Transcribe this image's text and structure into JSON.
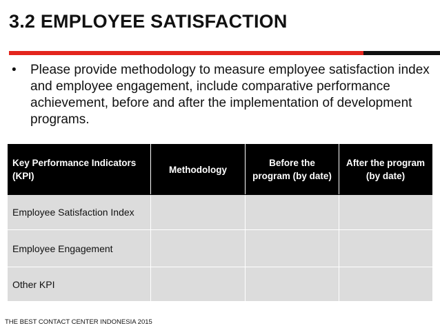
{
  "slide": {
    "title": "3.2 EMPLOYEE SATISFACTION",
    "accent_color": "#e3251d",
    "bullet_marker": "•",
    "bullet": "Please provide methodology to measure employee satisfaction index and employee engagement, include comparative performance achievement, before and after the implementation of development programs."
  },
  "table": {
    "headers": [
      "Key Performance Indicators (KPI)",
      "Methodology",
      "Before the program (by date)",
      "After the program (by date)"
    ],
    "rows": [
      [
        "Employee Satisfaction Index",
        "",
        "",
        ""
      ],
      [
        "Employee Engagement",
        "",
        "",
        ""
      ],
      [
        "Other KPI",
        "",
        "",
        ""
      ]
    ]
  },
  "footer": "THE BEST CONTACT CENTER INDONESIA 2015"
}
